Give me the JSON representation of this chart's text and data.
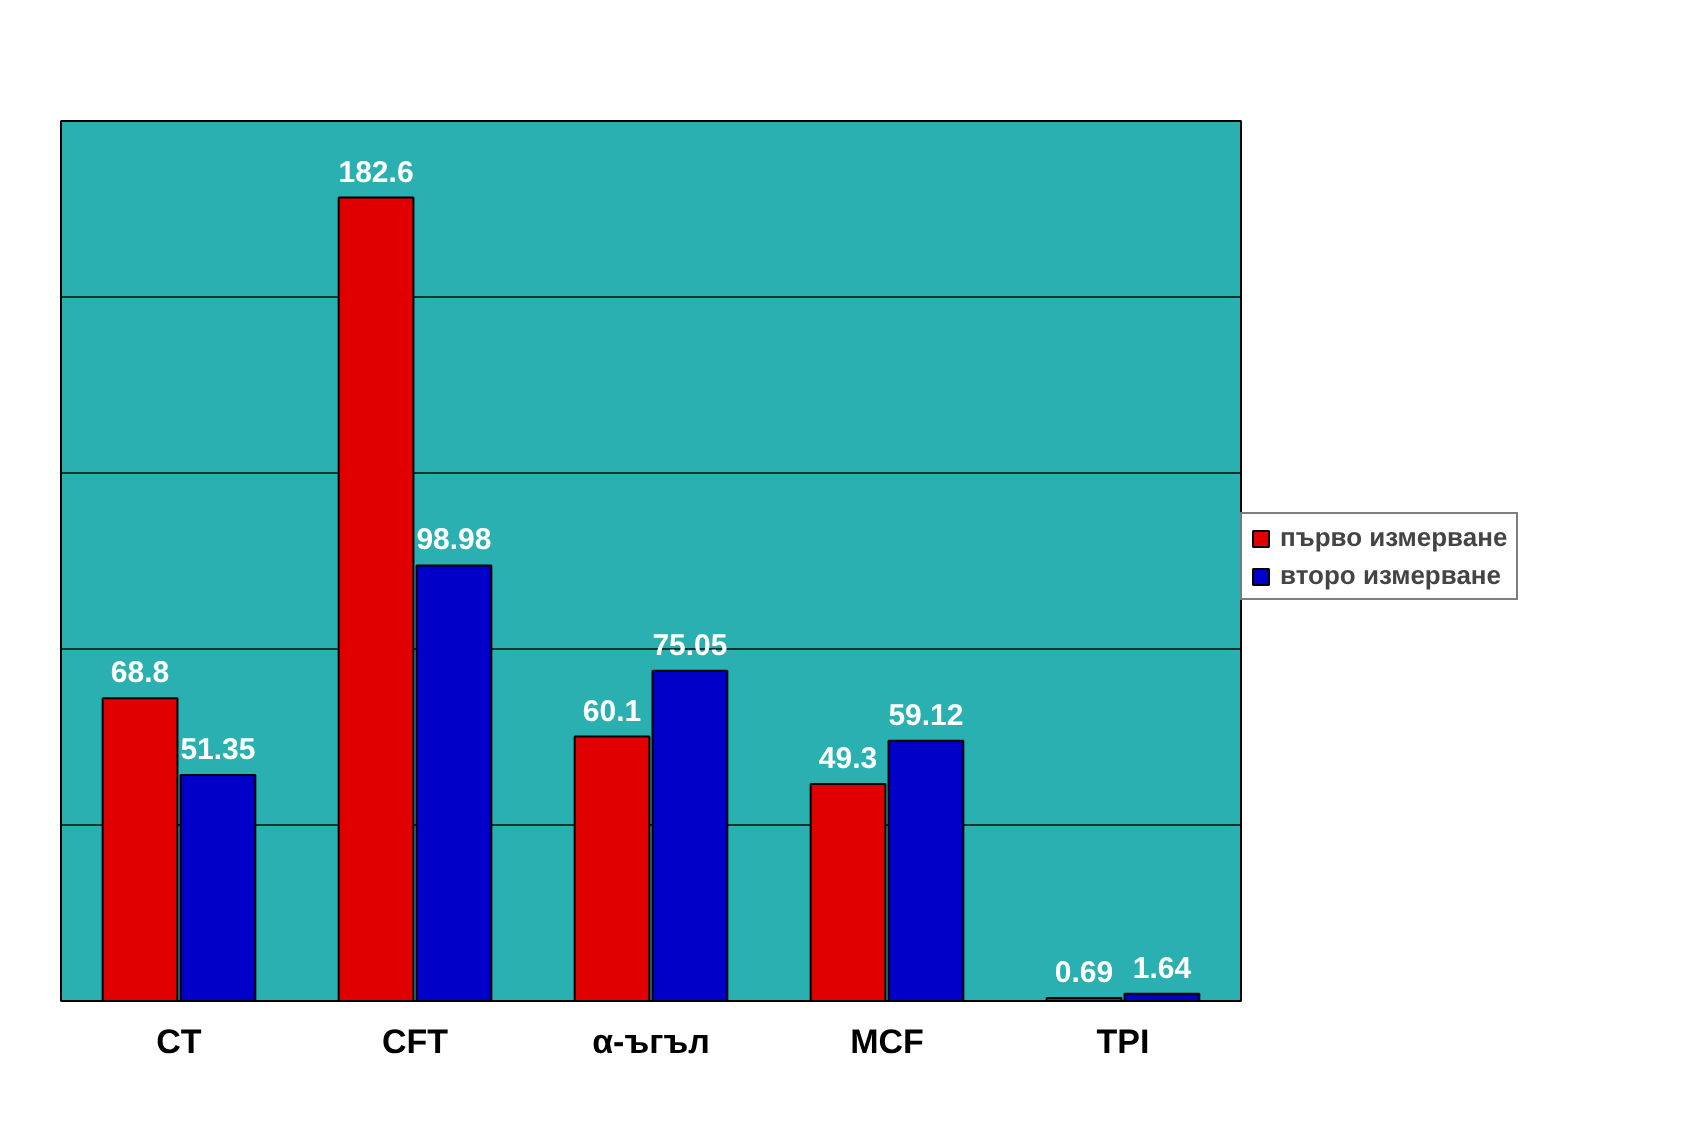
{
  "chart_data": {
    "type": "bar",
    "categories": [
      "CT",
      "CFT",
      "α-ъгъл",
      "MCF",
      "TPI"
    ],
    "series": [
      {
        "name": "първо измерване",
        "color": "#e00000",
        "values": [
          68.8,
          182.6,
          60.1,
          49.3,
          0.69
        ]
      },
      {
        "name": "второ измерване",
        "color": "#0000c8",
        "values": [
          51.35,
          98.98,
          75.05,
          59.12,
          1.64
        ]
      }
    ],
    "ylim": [
      0,
      200
    ],
    "yticks": [
      {
        "value": 0,
        "label": null
      },
      {
        "value": 40,
        "label": null
      },
      {
        "value": 80,
        "label": null
      },
      {
        "value": 120,
        "label": null
      },
      {
        "value": 160,
        "label": null
      },
      {
        "value": 200,
        "label": null
      }
    ],
    "tick_labels": "x",
    "grid": "y",
    "legend": "right",
    "data_labels": true
  }
}
